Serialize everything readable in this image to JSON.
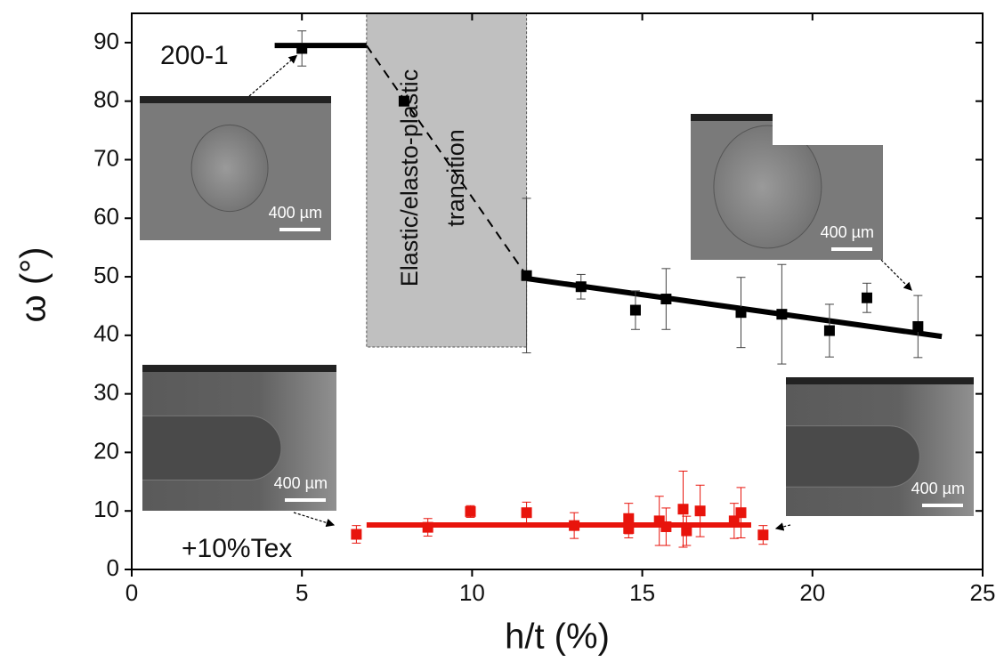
{
  "chart_data": {
    "type": "scatter",
    "xlabel": "h/t (%)",
    "ylabel": "ω (°)",
    "xlim": [
      0,
      25
    ],
    "ylim": [
      0,
      95
    ],
    "xticks": [
      0,
      5,
      10,
      15,
      20,
      25
    ],
    "yticks": [
      0,
      10,
      20,
      30,
      40,
      50,
      60,
      70,
      80,
      90
    ],
    "series": [
      {
        "name": "200-1",
        "color": "#000000",
        "x": [
          5.0,
          8.0,
          11.6,
          13.2,
          14.8,
          15.7,
          17.9,
          19.1,
          20.5,
          21.6,
          23.1
        ],
        "values": [
          89,
          80,
          50.2,
          48.3,
          44.3,
          46.2,
          43.9,
          43.6,
          40.8,
          46.4,
          41.5
        ],
        "errors": [
          3,
          null,
          13.2,
          2.1,
          3.3,
          5.2,
          6,
          8.5,
          4.5,
          2.5,
          5.3
        ]
      },
      {
        "name": "+10%Tex",
        "color": "#e8140c",
        "x": [
          6.6,
          8.7,
          9.95,
          11.6,
          13.0,
          14.6,
          14.6,
          15.5,
          15.7,
          16.2,
          16.3,
          16.7,
          17.7,
          17.9,
          18.55
        ],
        "values": [
          6.0,
          7.2,
          9.9,
          9.7,
          7.5,
          8.7,
          7.0,
          8.3,
          7.3,
          10.3,
          6.6,
          10.0,
          8.3,
          9.7,
          5.9
        ],
        "errors": [
          1.5,
          1.5,
          1,
          1.8,
          2.2,
          2.6,
          1.6,
          4.2,
          3.2,
          6.5,
          2.5,
          4.4,
          3,
          4.3,
          1.6
        ]
      }
    ],
    "fit_lines": [
      {
        "color": "#000000",
        "style": "solid",
        "x": [
          4.2,
          6.9
        ],
        "values": [
          89.5,
          89.5
        ]
      },
      {
        "color": "#000000",
        "style": "dashed",
        "x": [
          6.9,
          11.6
        ],
        "values": [
          89.5,
          50.2
        ]
      },
      {
        "color": "#000000",
        "style": "solid",
        "x": [
          11.6,
          23.8
        ],
        "values": [
          49.7,
          39.8
        ]
      },
      {
        "color": "#e8140c",
        "style": "solid",
        "x": [
          6.9,
          18.2
        ],
        "values": [
          7.6,
          7.6
        ]
      }
    ],
    "region": {
      "x": [
        6.9,
        11.6
      ],
      "y": [
        38,
        95
      ],
      "color": "#c0c0c0",
      "label": [
        "Elastic/elasto-plastic",
        "transition"
      ]
    },
    "insets": [
      {
        "scale_label": "400 µm"
      },
      {
        "scale_label": "400 µm"
      },
      {
        "scale_label": "400 µm"
      },
      {
        "scale_label": "400 µm"
      }
    ]
  }
}
